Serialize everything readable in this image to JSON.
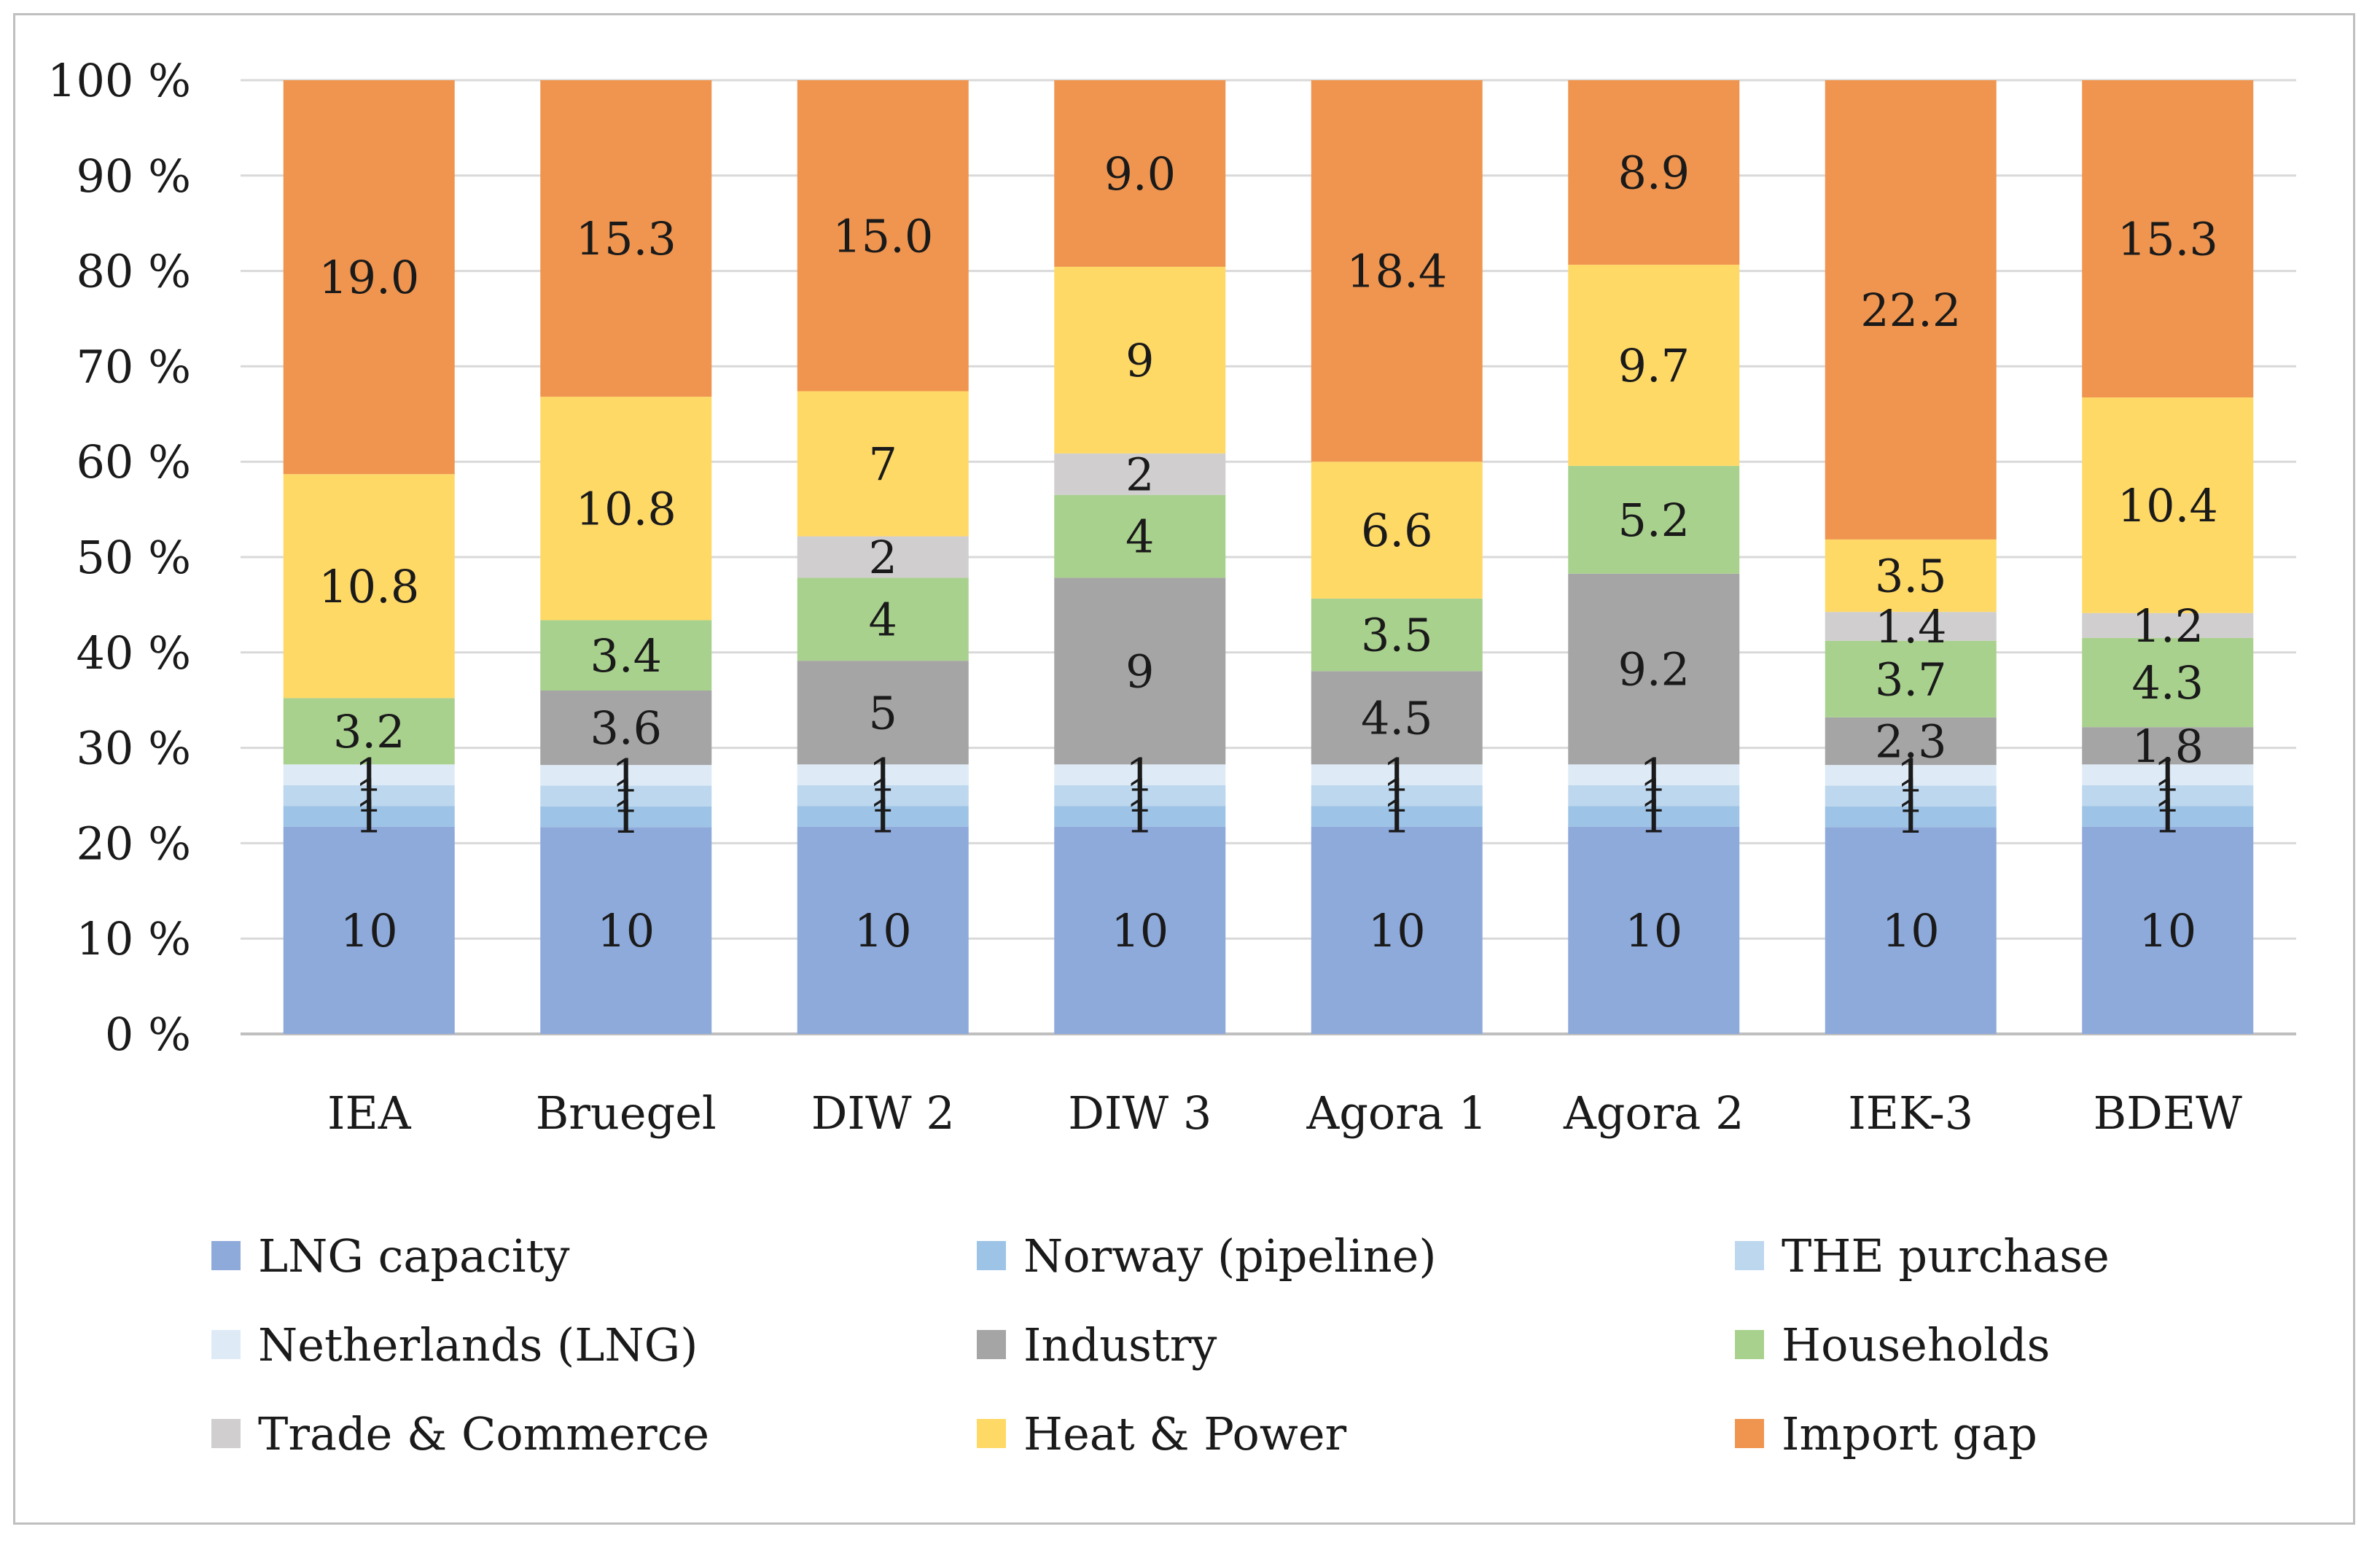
{
  "chart_data": {
    "type": "bar",
    "stacked": true,
    "categories": [
      "IEA",
      "Bruegel",
      "DIW 2",
      "DIW 3",
      "Agora 1",
      "Agora 2",
      "IEK-3",
      "BDEW"
    ],
    "yaxis": {
      "ticks": [
        "0 %",
        "10 %",
        "20 %",
        "30 %",
        "40 %",
        "50 %",
        "60 %",
        "70 %",
        "80 %",
        "90 %",
        "100 %"
      ],
      "ylim": [
        0,
        100
      ]
    },
    "series": [
      {
        "name": "LNG capacity",
        "color": "#8eaadb",
        "values": [
          10,
          10,
          10,
          10,
          10,
          10,
          10,
          10
        ],
        "labels": [
          "10",
          "10",
          "10",
          "10",
          "10",
          "10",
          "10",
          "10"
        ]
      },
      {
        "name": "Norway (pipeline)",
        "color": "#9dc3e6",
        "values": [
          1,
          1,
          1,
          1,
          1,
          1,
          1,
          1
        ],
        "labels": [
          "1",
          "1",
          "1",
          "1",
          "1",
          "1",
          "1",
          "1"
        ]
      },
      {
        "name": "THE purchase",
        "color": "#bdd7ee",
        "values": [
          1,
          1,
          1,
          1,
          1,
          1,
          1,
          1
        ],
        "labels": [
          "1",
          "1",
          "1",
          "1",
          "1",
          "1",
          "1",
          "1"
        ]
      },
      {
        "name": "Netherlands (LNG)",
        "color": "#deebf7",
        "values": [
          1,
          1,
          1,
          1,
          1,
          1,
          1,
          1
        ],
        "labels": [
          "1",
          "1",
          "1",
          "1",
          "1",
          "1",
          "1",
          "1"
        ]
      },
      {
        "name": "Industry",
        "color": "#a5a5a5",
        "values": [
          0,
          3.6,
          5,
          9,
          4.5,
          9.2,
          2.3,
          1.8
        ],
        "labels": [
          "",
          "3.6",
          "5",
          "9",
          "4.5",
          "9.2",
          "2.3",
          "1.8"
        ]
      },
      {
        "name": "Households",
        "color": "#a9d18e",
        "values": [
          3.2,
          3.4,
          4,
          4,
          3.5,
          5.2,
          3.7,
          4.3
        ],
        "labels": [
          "3.2",
          "3.4",
          "4",
          "4",
          "3.5",
          "5.2",
          "3.7",
          "4.3"
        ]
      },
      {
        "name": "Trade & Commerce",
        "color": "#d0cece",
        "values": [
          0,
          0,
          2,
          2,
          0,
          0,
          1.4,
          1.2
        ],
        "labels": [
          "",
          "",
          "2",
          "2",
          "",
          "",
          "1.4",
          "1.2"
        ]
      },
      {
        "name": "Heat & Power",
        "color": "#ffd966",
        "values": [
          10.8,
          10.8,
          7,
          9,
          6.6,
          9.7,
          3.5,
          10.4
        ],
        "labels": [
          "10.8",
          "10.8",
          "7",
          "9",
          "6.6",
          "9.7",
          "3.5",
          "10.4"
        ]
      },
      {
        "name": "Import gap",
        "color": "#f0954f",
        "values": [
          19.0,
          15.3,
          15.0,
          9.0,
          18.4,
          8.9,
          22.2,
          15.3
        ],
        "labels": [
          "19.0",
          "15.3",
          "15.0",
          "9.0",
          "18.4",
          "8.9",
          "22.2",
          "15.3"
        ]
      }
    ],
    "gridlines": true,
    "legend_position": "bottom"
  }
}
